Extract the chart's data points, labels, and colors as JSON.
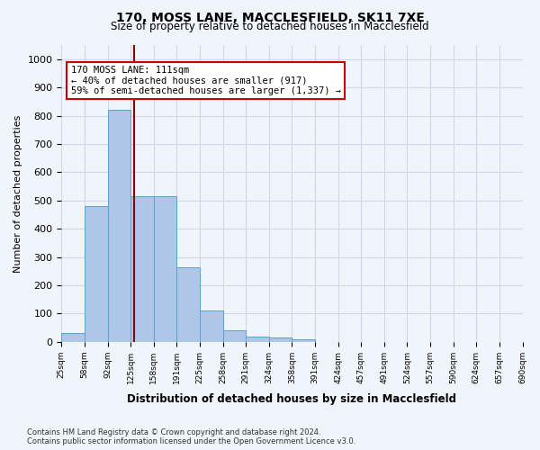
{
  "title1": "170, MOSS LANE, MACCLESFIELD, SK11 7XE",
  "title2": "Size of property relative to detached houses in Macclesfield",
  "xlabel": "Distribution of detached houses by size in Macclesfield",
  "ylabel": "Number of detached properties",
  "bar_values": [
    30,
    480,
    820,
    515,
    515,
    265,
    110,
    40,
    20,
    15,
    10,
    0,
    0,
    0,
    0,
    0,
    0,
    0,
    0,
    0
  ],
  "bar_labels": [
    "25sqm",
    "58sqm",
    "92sqm",
    "125sqm",
    "158sqm",
    "191sqm",
    "225sqm",
    "258sqm",
    "291sqm",
    "324sqm",
    "358sqm",
    "391sqm",
    "424sqm",
    "457sqm",
    "491sqm",
    "524sqm",
    "557sqm",
    "590sqm",
    "624sqm",
    "657sqm",
    "690sqm"
  ],
  "bar_color": "#aec6e8",
  "bar_edge_color": "#5f9fd4",
  "grid_color": "#d0d8e8",
  "vline_x": 2.65,
  "vline_color": "#8b0000",
  "annotation_text": "170 MOSS LANE: 111sqm\n← 40% of detached houses are smaller (917)\n59% of semi-detached houses are larger (1,337) →",
  "annotation_box_color": "#ffffff",
  "annotation_box_edge": "#cc0000",
  "ylim": [
    0,
    1050
  ],
  "yticks": [
    0,
    100,
    200,
    300,
    400,
    500,
    600,
    700,
    800,
    900,
    1000
  ],
  "footnote": "Contains HM Land Registry data © Crown copyright and database right 2024.\nContains public sector information licensed under the Open Government Licence v3.0.",
  "bg_color": "#f0f4fb",
  "plot_bg_color": "#f0f4fb"
}
